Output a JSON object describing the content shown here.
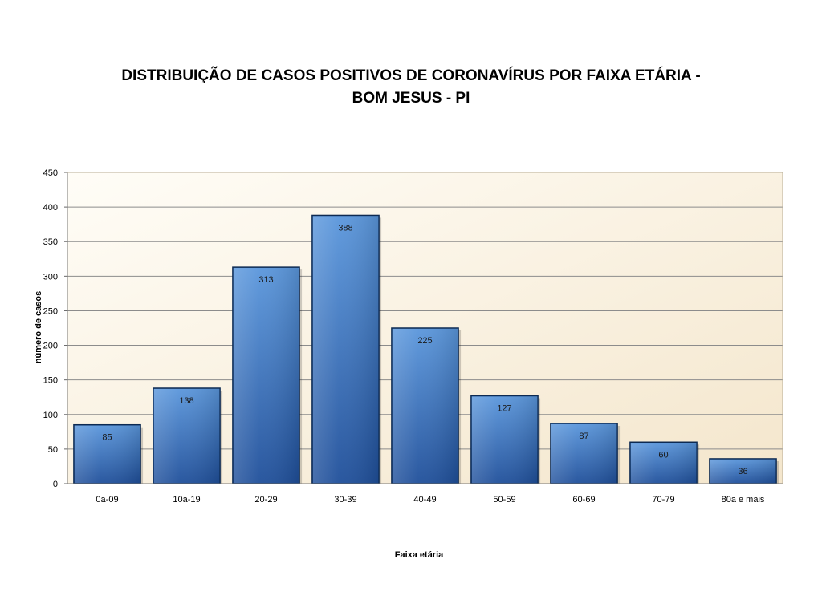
{
  "chart_data": {
    "type": "bar",
    "title": "DISTRIBUIÇÃO DE CASOS POSITIVOS DE CORONAVÍRUS POR FAIXA ETÁRIA -",
    "subtitle": "BOM JESUS - PI",
    "xlabel": "Faixa etária",
    "ylabel": "número de casos",
    "categories": [
      "0a-09",
      "10a-19",
      "20-29",
      "30-39",
      "40-49",
      "50-59",
      "60-69",
      "70-79",
      "80a e mais"
    ],
    "values": [
      85,
      138,
      313,
      388,
      225,
      127,
      87,
      60,
      36
    ],
    "ylim": [
      0,
      450
    ],
    "yticks": [
      0,
      50,
      100,
      150,
      200,
      250,
      300,
      350,
      400,
      450
    ],
    "grid": true,
    "legend": "none",
    "colors": {
      "bar_top": "#5b97dc",
      "bar_bottom": "#1f4f9a",
      "bar_border": "#0d2a52",
      "plot_background_light": "#fffbf2",
      "plot_background_dark": "#f6ead2",
      "grid_line": "#8c8c8c"
    }
  }
}
